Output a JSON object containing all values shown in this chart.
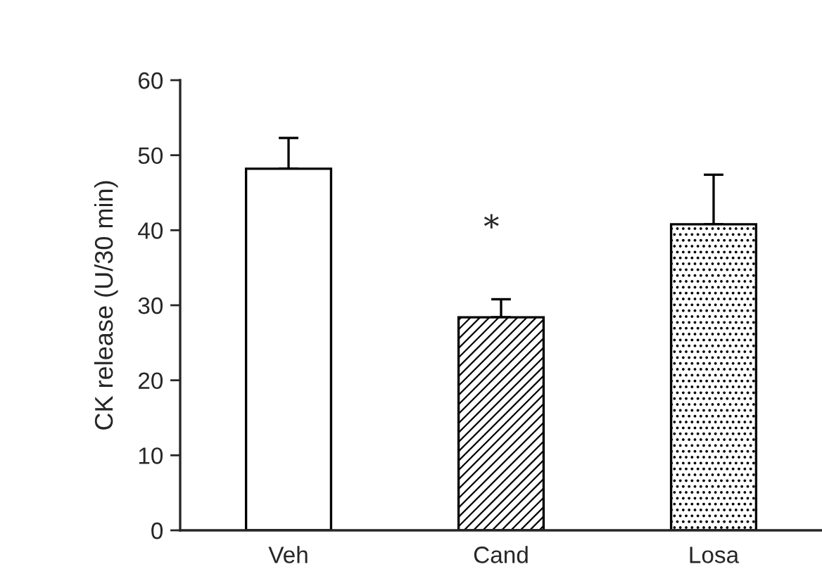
{
  "chart_data": {
    "type": "bar",
    "ylabel": "CK release (U/30 min)",
    "categories": [
      "Veh",
      "Cand",
      "Losa"
    ],
    "values": [
      48.2,
      28.4,
      40.8
    ],
    "errors": [
      [
        48.2,
        52.3
      ],
      [
        28.4,
        30.8
      ],
      [
        40.8,
        47.4
      ]
    ],
    "colors": [
      "#ffffff",
      "#000000",
      "#000000"
    ],
    "ylim": [
      0,
      60
    ],
    "yticks": [
      0,
      10,
      20,
      30,
      40,
      50,
      60
    ],
    "grid": false,
    "legend": false,
    "annotations": [
      "*"
    ]
  }
}
